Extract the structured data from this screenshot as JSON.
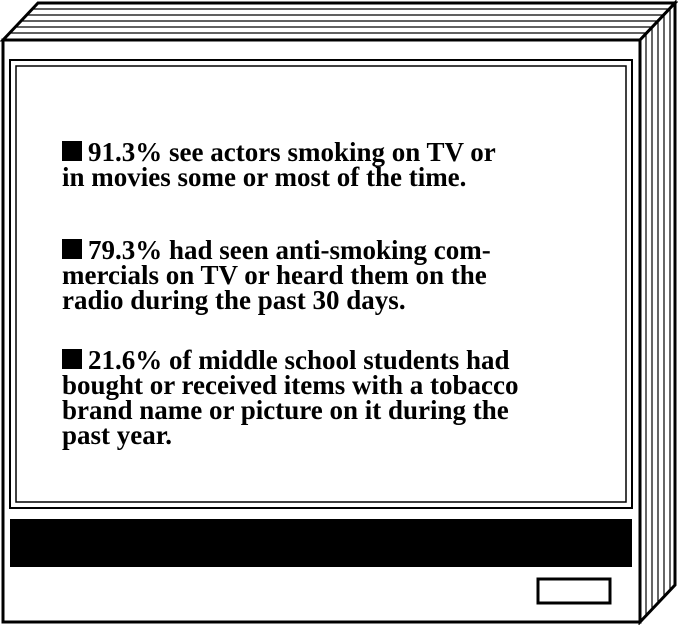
{
  "facts": [
    {
      "lines": [
        "91.3% see actors smoking on TV or",
        "in movies some or most of the time."
      ]
    },
    {
      "lines": [
        "79.3% had seen anti-smoking com-",
        "mercials on TV or heard them on the",
        "radio during the past 30 days."
      ]
    },
    {
      "lines": [
        "21.6% of middle school students had",
        "bought or received items with a tobacco",
        "brand name or picture on it during the",
        "past year."
      ]
    }
  ],
  "colors": {
    "ink": "#000000",
    "paper": "#ffffff"
  }
}
